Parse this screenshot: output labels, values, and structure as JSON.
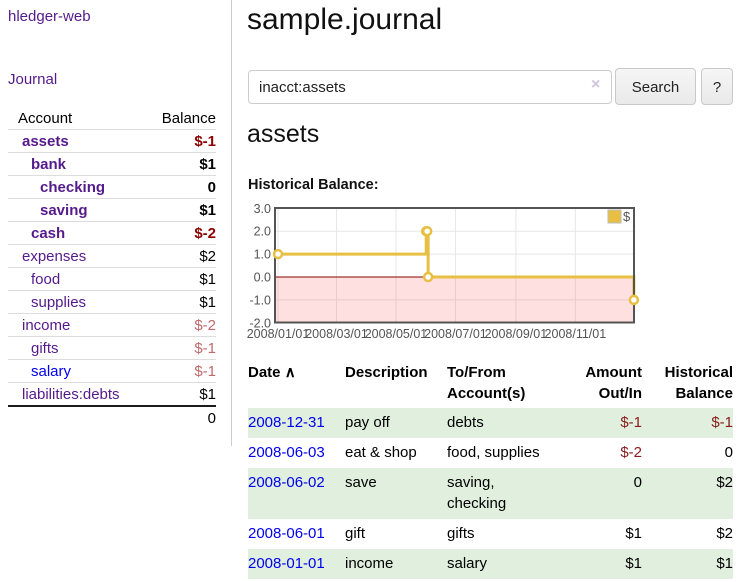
{
  "sidebar": {
    "brand": "hledger-web",
    "journal_link": "Journal",
    "header": {
      "account": "Account",
      "balance": "Balance"
    },
    "accounts": [
      {
        "name": "assets",
        "balance": "$-1"
      },
      {
        "name": "bank",
        "balance": "$1"
      },
      {
        "name": "checking",
        "balance": "0"
      },
      {
        "name": "saving",
        "balance": "$1"
      },
      {
        "name": "cash",
        "balance": "$-2"
      },
      {
        "name": "expenses",
        "balance": "$2"
      },
      {
        "name": "food",
        "balance": "$1"
      },
      {
        "name": "supplies",
        "balance": "$1"
      },
      {
        "name": "income",
        "balance": "$-2"
      },
      {
        "name": "gifts",
        "balance": "$-1"
      },
      {
        "name": "salary",
        "balance": "$-1"
      },
      {
        "name": "liabilities:debts",
        "balance": "$1"
      }
    ],
    "total": "0"
  },
  "main": {
    "title": "sample.journal",
    "search": {
      "value": "inacct:assets",
      "clear_icon": "×",
      "search_button": "Search",
      "help_button": "?"
    },
    "account_heading": "assets",
    "chart_heading": "Historical Balance:"
  },
  "chart_data": {
    "type": "line",
    "step": true,
    "title": "Historical Balance:",
    "x_start": "2008-01-01",
    "x_ticks": [
      "2008/01/01",
      "2008/03/01",
      "2008/05/01",
      "2008/07/01",
      "2008/09/01",
      "2008/11/01"
    ],
    "y_ticks": [
      "3.0",
      "2.0",
      "1.0",
      "0.0",
      "-1.0",
      "-2.0"
    ],
    "ylim": [
      -2,
      3
    ],
    "series": [
      {
        "name": "$",
        "color": "#e7c043",
        "points": [
          [
            "2008-01-01",
            1
          ],
          [
            "2008-06-01",
            2
          ],
          [
            "2008-06-02",
            2
          ],
          [
            "2008-06-03",
            0
          ],
          [
            "2008-12-31",
            -1
          ]
        ]
      }
    ],
    "legend": [
      {
        "label": "$",
        "color": "#e7c043"
      }
    ],
    "legend_position": "top-right",
    "grid_color": "#e7e7e7",
    "border_color": "#545454",
    "tick_label_color": "#545454",
    "zero_line_color": "#8b0000",
    "negative_fill": "rgba(255,0,0,0.12)"
  },
  "transactions": {
    "headers": {
      "date": "Date",
      "sort_icon": "∧",
      "description": "Description",
      "accounts": "To/From\nAccount(s)",
      "amount": "Amount\nOut/In",
      "balance": "Historical\nBalance"
    },
    "rows": [
      {
        "date": "2008-12-31",
        "description": "pay off",
        "accounts": "debts",
        "amount": "$-1",
        "balance": "$-1"
      },
      {
        "date": "2008-06-03",
        "description": "eat & shop",
        "accounts": "food, supplies",
        "amount": "$-2",
        "balance": "0"
      },
      {
        "date": "2008-06-02",
        "description": "save",
        "accounts": "saving,\nchecking",
        "amount": "0",
        "balance": "$2"
      },
      {
        "date": "2008-06-01",
        "description": "gift",
        "accounts": "gifts",
        "amount": "$1",
        "balance": "$2"
      },
      {
        "date": "2008-01-01",
        "description": "income",
        "accounts": "salary",
        "amount": "$1",
        "balance": "$1"
      }
    ]
  }
}
